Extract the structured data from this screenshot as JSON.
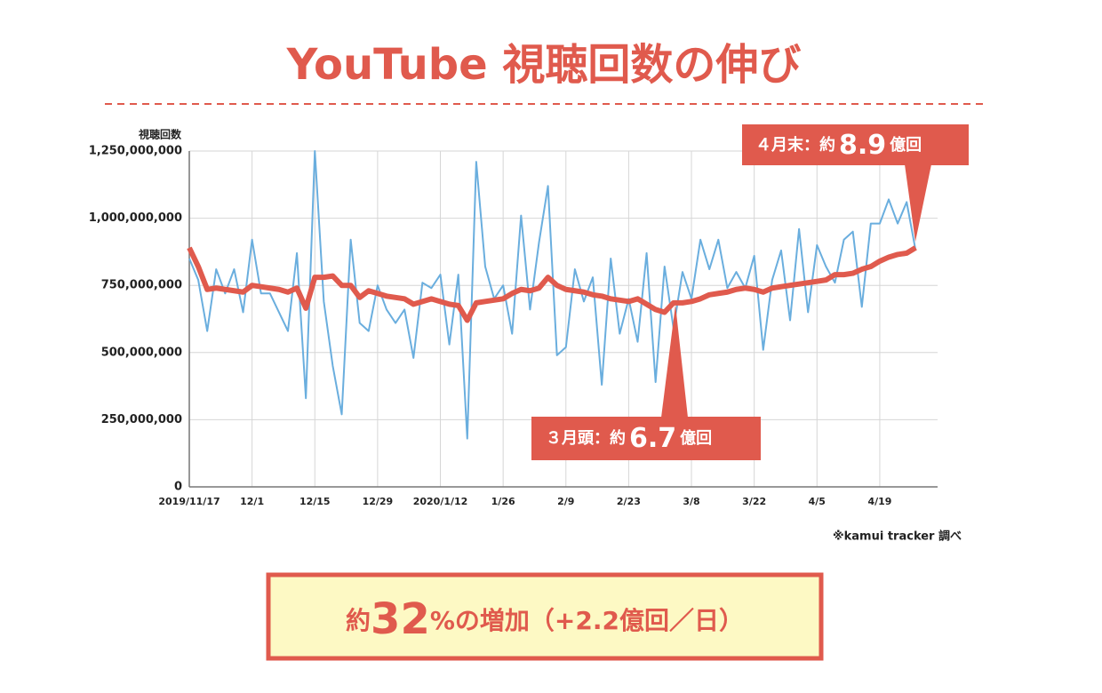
{
  "chart_data": {
    "type": "line",
    "title": "YouTube 視聴回数の伸び",
    "y_label": "視聴回数",
    "note": "※kamui tracker 調べ",
    "categories": [
      "2019/11/17",
      null,
      null,
      null,
      null,
      null,
      null,
      "12/1",
      null,
      null,
      null,
      null,
      null,
      null,
      "12/15",
      null,
      null,
      null,
      null,
      null,
      null,
      "12/29",
      null,
      null,
      null,
      null,
      null,
      null,
      "2020/1/12",
      null,
      null,
      null,
      null,
      null,
      null,
      "1/26",
      null,
      null,
      null,
      null,
      null,
      null,
      "2/9",
      null,
      null,
      null,
      null,
      null,
      null,
      "2/23",
      null,
      null,
      null,
      null,
      null,
      null,
      "3/8",
      null,
      null,
      null,
      null,
      null,
      null,
      "3/22",
      null,
      null,
      null,
      null,
      null,
      null,
      "4/5",
      null,
      null,
      null,
      null,
      null,
      null,
      "4/19",
      null,
      null,
      null,
      null
    ],
    "series": [
      {
        "color": "#6aaede",
        "values": [
          850000000,
          770000000,
          580000000,
          810000000,
          720000000,
          810000000,
          650000000,
          920000000,
          720000000,
          720000000,
          650000000,
          580000000,
          870000000,
          330000000,
          1250000000,
          690000000,
          450000000,
          270000000,
          920000000,
          610000000,
          580000000,
          750000000,
          660000000,
          610000000,
          660000000,
          480000000,
          760000000,
          740000000,
          790000000,
          530000000,
          790000000,
          180000000,
          1210000000,
          820000000,
          700000000,
          750000000,
          570000000,
          1010000000,
          660000000,
          910000000,
          1120000000,
          490000000,
          520000000,
          810000000,
          690000000,
          780000000,
          380000000,
          850000000,
          570000000,
          700000000,
          540000000,
          870000000,
          390000000,
          820000000,
          590000000,
          800000000,
          700000000,
          920000000,
          810000000,
          920000000,
          740000000,
          800000000,
          740000000,
          860000000,
          510000000,
          770000000,
          880000000,
          620000000,
          960000000,
          650000000,
          900000000,
          820000000,
          760000000,
          920000000,
          950000000,
          670000000,
          980000000,
          980000000,
          1070000000,
          980000000,
          1060000000,
          880000000
        ]
      },
      {
        "color": "#e05a4d",
        "values": [
          890000000,
          820000000,
          735000000,
          740000000,
          735000000,
          730000000,
          725000000,
          750000000,
          745000000,
          740000000,
          735000000,
          725000000,
          740000000,
          665000000,
          780000000,
          780000000,
          785000000,
          750000000,
          750000000,
          705000000,
          730000000,
          720000000,
          710000000,
          705000000,
          700000000,
          680000000,
          690000000,
          700000000,
          690000000,
          680000000,
          675000000,
          620000000,
          685000000,
          690000000,
          695000000,
          700000000,
          720000000,
          735000000,
          730000000,
          740000000,
          780000000,
          750000000,
          735000000,
          730000000,
          725000000,
          715000000,
          710000000,
          700000000,
          695000000,
          690000000,
          700000000,
          680000000,
          660000000,
          650000000,
          685000000,
          685000000,
          690000000,
          700000000,
          715000000,
          720000000,
          725000000,
          735000000,
          740000000,
          735000000,
          725000000,
          740000000,
          745000000,
          750000000,
          755000000,
          760000000,
          765000000,
          770000000,
          790000000,
          790000000,
          795000000,
          810000000,
          820000000,
          840000000,
          855000000,
          865000000,
          870000000,
          890000000
        ]
      }
    ],
    "ylim": [
      0,
      1250000000
    ],
    "yticks": [
      0,
      {
        "value": 250000000,
        "label": "250,000,000"
      },
      {
        "value": 500000000,
        "label": "500,000,000"
      },
      {
        "value": 750000000,
        "label": "750,000,000"
      },
      {
        "value": 1000000000,
        "label": "1,000,000,000"
      },
      {
        "value": 1250000000,
        "label": "1,250,000,000"
      }
    ],
    "grid": true,
    "annotations": [
      {
        "text": "４月末：約",
        "number": "8.9",
        "unit": "億回"
      },
      {
        "text": "３月頭：約",
        "number": "6.7",
        "unit": "億回"
      }
    ],
    "summary": {
      "prefix": "約",
      "number": "32",
      "suffix": "%の増加（+2.2億回／日）"
    }
  }
}
